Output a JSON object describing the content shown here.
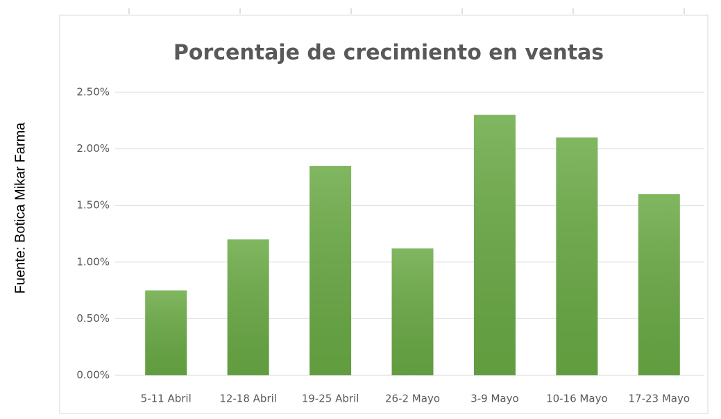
{
  "chart_data": {
    "type": "bar",
    "title": "Porcentaje de crecimiento en ventas",
    "source": "Fuente: Botica Mikar Farma",
    "categories": [
      "5-11 Abril",
      "12-18 Abril",
      "19-25 Abril",
      "26-2 Mayo",
      "3-9 Mayo",
      "10-16 Mayo",
      "17-23 Mayo"
    ],
    "values": [
      0.75,
      1.2,
      1.85,
      1.12,
      2.3,
      2.1,
      1.6
    ],
    "color": "#6aaa45",
    "ylim": [
      0,
      2.5
    ],
    "yticks": [
      {
        "value": 0,
        "label": "0.00%"
      },
      {
        "value": 0.5,
        "label": "0.50%"
      },
      {
        "value": 1,
        "label": "1.00%"
      },
      {
        "value": 1.5,
        "label": "1.50%"
      },
      {
        "value": 2,
        "label": "2.00%"
      },
      {
        "value": 2.5,
        "label": "2.50%"
      }
    ],
    "grid": true
  }
}
